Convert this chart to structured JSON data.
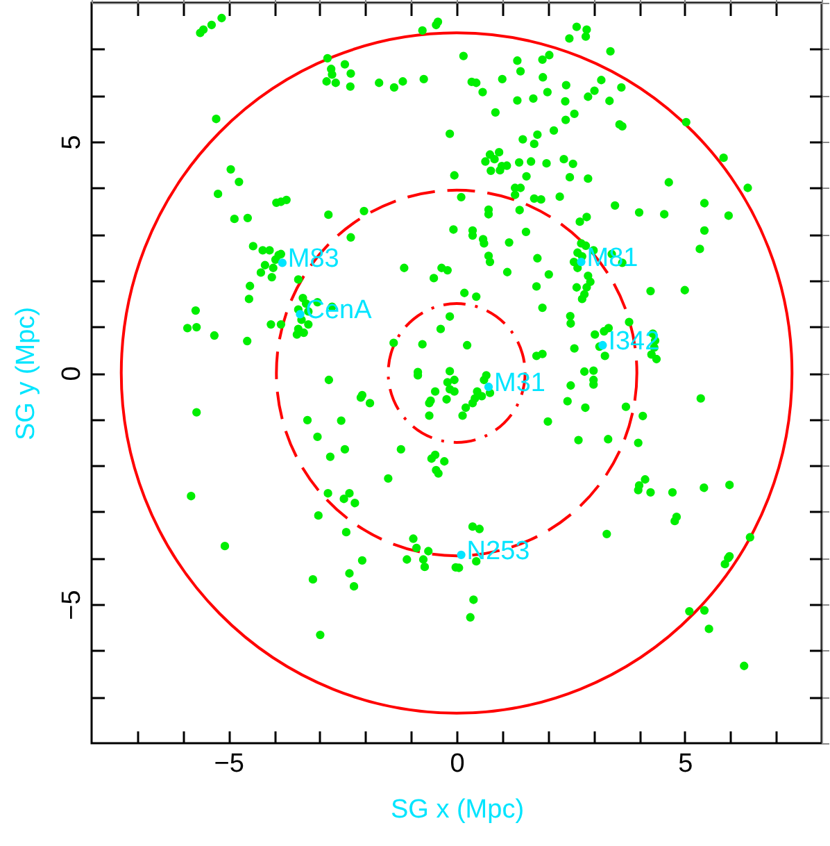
{
  "chart_data": {
    "type": "scatter",
    "xlabel": "SG x (Mpc)",
    "ylabel": "SG y (Mpc)",
    "xlim": [
      -8,
      8
    ],
    "ylim": [
      -8,
      8
    ],
    "xticks": [
      {
        "value": -7,
        "label": null
      },
      {
        "value": -6,
        "label": null
      },
      -5,
      {
        "value": -4,
        "label": null
      },
      {
        "value": -3,
        "label": null
      },
      {
        "value": -2,
        "label": null
      },
      {
        "value": -1,
        "label": null
      },
      0,
      {
        "value": 1,
        "label": null
      },
      {
        "value": 2,
        "label": null
      },
      {
        "value": 3,
        "label": null
      },
      {
        "value": 4,
        "label": null
      },
      5,
      {
        "value": 6,
        "label": null
      },
      {
        "value": 7,
        "label": null
      }
    ],
    "yticks": [
      {
        "value": -7,
        "label": null
      },
      {
        "value": -6,
        "label": null
      },
      -5,
      {
        "value": -4,
        "label": null
      },
      {
        "value": -3,
        "label": null
      },
      {
        "value": -2,
        "label": null
      },
      {
        "value": -1,
        "label": null
      },
      0,
      {
        "value": 1,
        "label": null
      },
      {
        "value": 2,
        "label": null
      },
      {
        "value": 3,
        "label": null
      },
      {
        "value": 4,
        "label": null
      },
      5,
      {
        "value": 6,
        "label": null
      },
      {
        "value": 7,
        "label": null
      }
    ],
    "series": [
      {
        "marker": "circle",
        "color": "#00ee00",
        "x": [
          -5.62,
          -5.55,
          -5.37,
          -5.15,
          -2.83,
          -2.75,
          -2.73,
          -2.45,
          -2.32,
          -2.85,
          -2.65,
          -2.33,
          -1.7,
          -1.37,
          -1.18,
          -0.72,
          -0.75,
          -0.45,
          -0.41,
          -5.27,
          -0.15,
          -4.95,
          -4.77,
          -5.23,
          -3.95,
          -3.85,
          -3.73,
          -4.87,
          -4.58,
          -2.81,
          -2.03,
          -2.32,
          -0.05,
          -0.07,
          -4.46,
          -4.25,
          -4.1,
          -3.9,
          -3.97,
          -4.2,
          -4.02,
          -4.29,
          -4.05,
          -3.85,
          -3.47,
          -4.53,
          -4.55,
          -3.37,
          -3.3,
          -3.47,
          -3.25,
          -3.4,
          -3.25,
          -3.47,
          -3.35,
          -3.5,
          -3.05,
          -2.73,
          -4.07,
          -3.85,
          -5.72,
          -5.9,
          -5.7,
          -5.31,
          -4.59,
          -1.15,
          -0.5,
          -0.33,
          -0.2,
          -1.38,
          -0.75,
          -0.35,
          -0.15,
          -0.85,
          -0.15,
          2.63,
          2.85,
          2.83,
          2.47,
          3.37,
          0.15,
          1.33,
          1.88,
          2.03,
          1.4,
          0.33,
          0.43,
          0.57,
          1.0,
          1.89,
          2.4,
          1.99,
          3.17,
          3.02,
          2.88,
          3.61,
          1.33,
          1.68,
          2.38,
          3.35,
          0.85,
          2.58,
          2.39,
          3.57,
          3.63,
          5.03,
          2.13,
          1.77,
          1.45,
          1.7,
          5.85,
          6.38,
          0.73,
          0.93,
          0.63,
          0.83,
          0.99,
          1.1,
          0.75,
          0.95,
          1.37,
          1.63,
          1.97,
          2.35,
          2.55,
          1.53,
          2.48,
          2.88,
          4.65,
          1.28,
          1.4,
          1.28,
          0.1,
          1.7,
          1.85,
          2.26,
          0.7,
          0.7,
          1.38,
          3.47,
          4.0,
          4.55,
          5.43,
          5.96,
          0.35,
          0.35,
          1.52,
          1.15,
          0.58,
          0.6,
          5.43,
          5.33,
          2.7,
          2.85,
          2.73,
          2.83,
          3.0,
          2.65,
          2.75,
          2.57,
          2.65,
          2.88,
          2.93,
          2.63,
          2.85,
          2.8,
          2.75,
          3.4,
          3.63,
          0.7,
          0.73,
          1.77,
          1.11,
          2.02,
          4.25,
          5.0,
          1.75,
          1.88,
          0.17,
          0.43,
          2.49,
          2.5,
          3.78,
          3.03,
          3.23,
          3.33,
          3.13,
          3.25,
          4.3,
          4.35,
          4.33,
          4.27,
          4.38,
          0.23,
          1.75,
          1.88,
          2.58,
          2.8,
          3.0,
          -2.8,
          -0.85,
          -5.7,
          -2.1,
          -2.07,
          -1.9,
          -0.47,
          -0.57,
          -0.6,
          -0.6,
          -0.2,
          -0.15,
          -0.22,
          -3.27,
          -2.53,
          -3.05,
          -2.77,
          -2.45,
          -1.22,
          -1.5,
          -0.55,
          -0.47,
          -0.27,
          -0.45,
          -0.4,
          -5.82,
          -2.82,
          -2.47,
          -2.35,
          -2.23,
          -3.03,
          -2.42,
          -5.08,
          -0.95,
          -0.88,
          -0.62,
          -1.09,
          -0.73,
          -0.7,
          -2.07,
          -2.35,
          -2.25,
          -3.15,
          -2.99,
          -0.02,
          3.0,
          3.0,
          2.5,
          2.43,
          2.82,
          2.0,
          2.67,
          3.32,
          3.71,
          4.08,
          3.98,
          5.35,
          0.6,
          0.65,
          0.45,
          0.55,
          0.4,
          0.35,
          0.2,
          0.13,
          0.73,
          -0.05,
          -0.05,
          3.98,
          4.0,
          4.13,
          4.25,
          4.73,
          5.42,
          5.98,
          4.78,
          4.82,
          3.29,
          6.43,
          0.35,
          0.5,
          0.43,
          0.05,
          0.37,
          0.3,
          5.88,
          5.95,
          5.98,
          5.1,
          5.43,
          5.53,
          6.3
        ],
        "values": [
          7.35,
          7.42,
          7.52,
          7.67,
          6.8,
          6.57,
          6.45,
          6.67,
          6.47,
          6.3,
          6.27,
          6.19,
          6.27,
          6.17,
          6.3,
          6.35,
          7.4,
          7.52,
          7.59,
          5.49,
          5.17,
          4.4,
          4.13,
          3.87,
          3.68,
          3.7,
          3.74,
          3.33,
          3.35,
          3.42,
          3.5,
          2.93,
          4.27,
          3.1,
          2.74,
          2.65,
          2.65,
          2.55,
          2.45,
          2.33,
          2.27,
          2.17,
          2.07,
          2.57,
          2.02,
          1.88,
          1.6,
          1.62,
          1.5,
          1.37,
          1.33,
          1.15,
          1.05,
          0.95,
          0.87,
          0.83,
          1.53,
          1.43,
          1.05,
          1.05,
          1.35,
          0.97,
          0.99,
          0.81,
          0.69,
          2.27,
          2.05,
          2.27,
          2.22,
          0.65,
          0.62,
          0.95,
          1.22,
          0.02,
          0.04,
          7.48,
          7.42,
          7.27,
          7.23,
          6.95,
          6.85,
          6.75,
          6.77,
          6.87,
          6.52,
          6.29,
          6.27,
          6.07,
          6.35,
          6.39,
          6.22,
          6.07,
          6.33,
          6.1,
          5.97,
          6.17,
          5.89,
          5.93,
          5.87,
          5.88,
          5.63,
          5.6,
          5.47,
          5.37,
          5.33,
          5.42,
          5.24,
          5.15,
          5.05,
          4.95,
          4.65,
          4.0,
          4.72,
          4.77,
          4.57,
          4.62,
          4.47,
          4.48,
          4.37,
          4.38,
          4.55,
          4.57,
          4.53,
          4.62,
          4.52,
          4.25,
          4.23,
          4.2,
          4.12,
          4.0,
          4.0,
          3.85,
          3.8,
          3.77,
          3.75,
          3.81,
          3.53,
          3.43,
          3.52,
          3.62,
          3.47,
          3.43,
          3.67,
          3.4,
          3.08,
          2.97,
          3.05,
          2.82,
          2.89,
          2.8,
          3.08,
          2.68,
          3.27,
          3.37,
          2.8,
          2.75,
          2.65,
          2.6,
          2.52,
          2.4,
          2.27,
          2.1,
          1.97,
          1.85,
          1.85,
          1.7,
          1.6,
          2.57,
          2.38,
          2.53,
          2.4,
          2.48,
          2.18,
          2.13,
          1.77,
          1.79,
          1.87,
          1.41,
          1.73,
          1.65,
          1.23,
          1.07,
          1.1,
          0.83,
          0.9,
          0.97,
          0.57,
          0.37,
          0.85,
          0.7,
          0.55,
          0.4,
          0.3,
          0.6,
          0.37,
          0.41,
          0.53,
          0.03,
          0.05,
          -0.15,
          -0.05,
          -0.85,
          -0.53,
          -0.48,
          -0.65,
          -0.4,
          -0.6,
          -0.65,
          -0.92,
          -0.2,
          -0.35,
          -0.57,
          -1.02,
          -1.03,
          -1.38,
          -1.81,
          -1.65,
          -1.65,
          -2.28,
          -1.85,
          -1.77,
          -1.91,
          -2.1,
          -2.17,
          -2.66,
          -2.6,
          -2.72,
          -2.6,
          -2.81,
          -3.08,
          -3.44,
          -3.74,
          -3.58,
          -3.78,
          -3.85,
          -4.03,
          -4.03,
          -4.19,
          -4.05,
          -4.33,
          -4.61,
          -4.46,
          -5.66,
          -4.2,
          -0.15,
          -0.25,
          -0.27,
          -0.61,
          -0.75,
          -1.05,
          -1.45,
          -1.43,
          -0.73,
          -0.93,
          -1.51,
          -0.55,
          -0.15,
          -0.05,
          -0.4,
          -0.5,
          -0.55,
          -0.65,
          -0.75,
          -0.92,
          -0.43,
          -0.15,
          -0.4,
          -2.53,
          -2.43,
          -2.3,
          -2.58,
          -2.58,
          -2.48,
          -2.42,
          -3.2,
          -3.11,
          -3.48,
          -3.55,
          -3.32,
          -3.37,
          -4.07,
          -4.21,
          -4.9,
          -5.28,
          -4.13,
          -4.0,
          -3.96,
          -5.15,
          -5.13,
          -5.53,
          -6.33
        ]
      },
      {
        "marker": "circle",
        "color": "#00e5ff",
        "x": [
          -3.82,
          -3.43,
          2.73,
          3.2,
          0.7,
          0.1
        ],
        "values": [
          2.38,
          1.27,
          2.4,
          0.6,
          -0.3,
          -3.93
        ]
      }
    ],
    "annotations": [
      {
        "text": "M83",
        "x": -3.82,
        "y": 2.38
      },
      {
        "text": "CenA",
        "x": -3.43,
        "y": 1.27
      },
      {
        "text": "M81",
        "x": 2.73,
        "y": 2.4
      },
      {
        "text": "I342",
        "x": 3.2,
        "y": 0.6
      },
      {
        "text": "M31",
        "x": 0.7,
        "y": -0.3
      },
      {
        "text": "N253",
        "x": 0.1,
        "y": -3.93
      }
    ]
  }
}
